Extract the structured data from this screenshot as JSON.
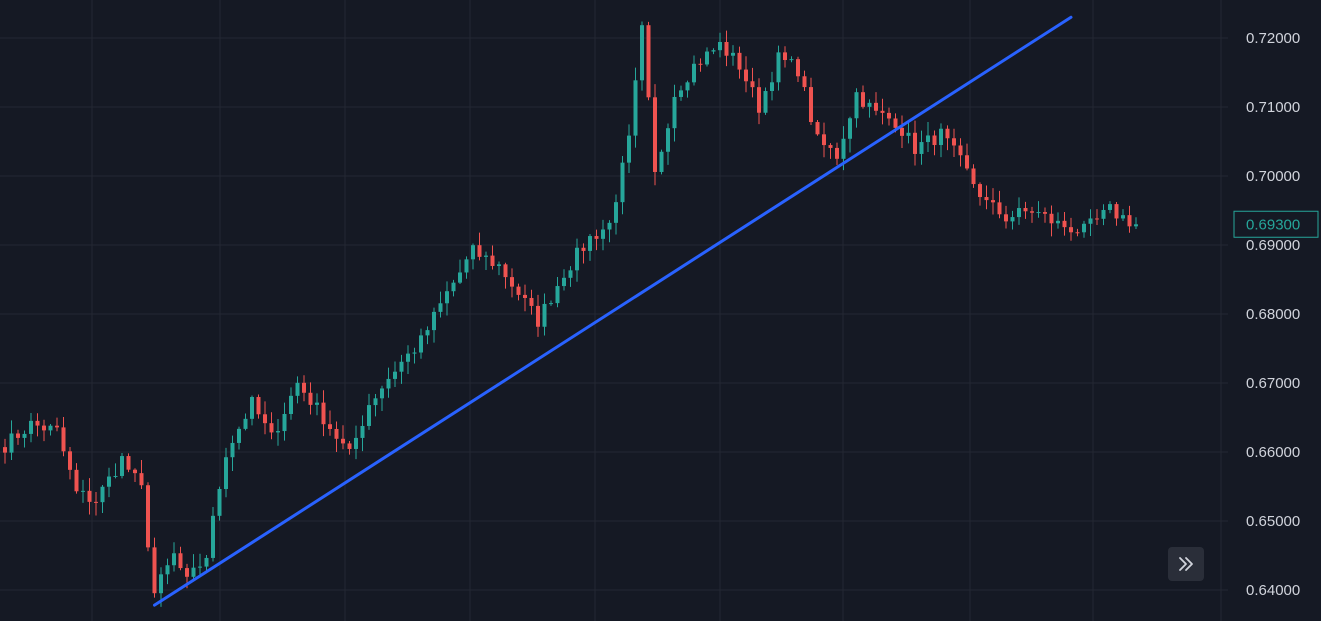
{
  "chart_data": {
    "type": "candlestick",
    "symbol": "",
    "ylim": [
      0.6355,
      0.7255
    ],
    "yticks": [
      "0.72000",
      "0.71000",
      "0.70000",
      "0.69000",
      "0.68000",
      "0.67000",
      "0.66000",
      "0.65000",
      "0.64000"
    ],
    "grid": true,
    "last_price": "0.69300",
    "colors": {
      "background": "#151924",
      "grid": "#232733",
      "up": "#26a69a",
      "down": "#ef5350",
      "trendline": "#2962ff",
      "axis_text": "#d1d4dc"
    },
    "trendline": {
      "from": {
        "index": 23,
        "value": 0.6378
      },
      "to": {
        "index": 164,
        "value": 0.723
      }
    },
    "anchors": [
      [
        0,
        0.661
      ],
      [
        4,
        0.664
      ],
      [
        8,
        0.663
      ],
      [
        11,
        0.654
      ],
      [
        14,
        0.653
      ],
      [
        18,
        0.659
      ],
      [
        21,
        0.6545
      ],
      [
        23,
        0.6395
      ],
      [
        26,
        0.645
      ],
      [
        28,
        0.641
      ],
      [
        31,
        0.645
      ],
      [
        34,
        0.66
      ],
      [
        38,
        0.667
      ],
      [
        41,
        0.662
      ],
      [
        45,
        0.67
      ],
      [
        49,
        0.665
      ],
      [
        53,
        0.6595
      ],
      [
        56,
        0.667
      ],
      [
        60,
        0.672
      ],
      [
        64,
        0.676
      ],
      [
        68,
        0.683
      ],
      [
        72,
        0.689
      ],
      [
        76,
        0.687
      ],
      [
        79,
        0.683
      ],
      [
        82,
        0.679
      ],
      [
        86,
        0.686
      ],
      [
        90,
        0.691
      ],
      [
        93,
        0.693
      ],
      [
        96,
        0.705
      ],
      [
        98,
        0.721
      ],
      [
        100,
        0.7
      ],
      [
        103,
        0.712
      ],
      [
        106,
        0.716
      ],
      [
        110,
        0.719
      ],
      [
        113,
        0.716
      ],
      [
        116,
        0.71
      ],
      [
        119,
        0.717
      ],
      [
        122,
        0.7155
      ],
      [
        125,
        0.705
      ],
      [
        128,
        0.703
      ],
      [
        131,
        0.712
      ],
      [
        134,
        0.709
      ],
      [
        137,
        0.708
      ],
      [
        140,
        0.704
      ],
      [
        144,
        0.706
      ],
      [
        147,
        0.702
      ],
      [
        151,
        0.696
      ],
      [
        154,
        0.694
      ],
      [
        158,
        0.695
      ],
      [
        162,
        0.693
      ],
      [
        166,
        0.692
      ],
      [
        170,
        0.695
      ],
      [
        174,
        0.693
      ]
    ]
  },
  "ui": {
    "scroll_icon": "chevrons-right-icon"
  }
}
